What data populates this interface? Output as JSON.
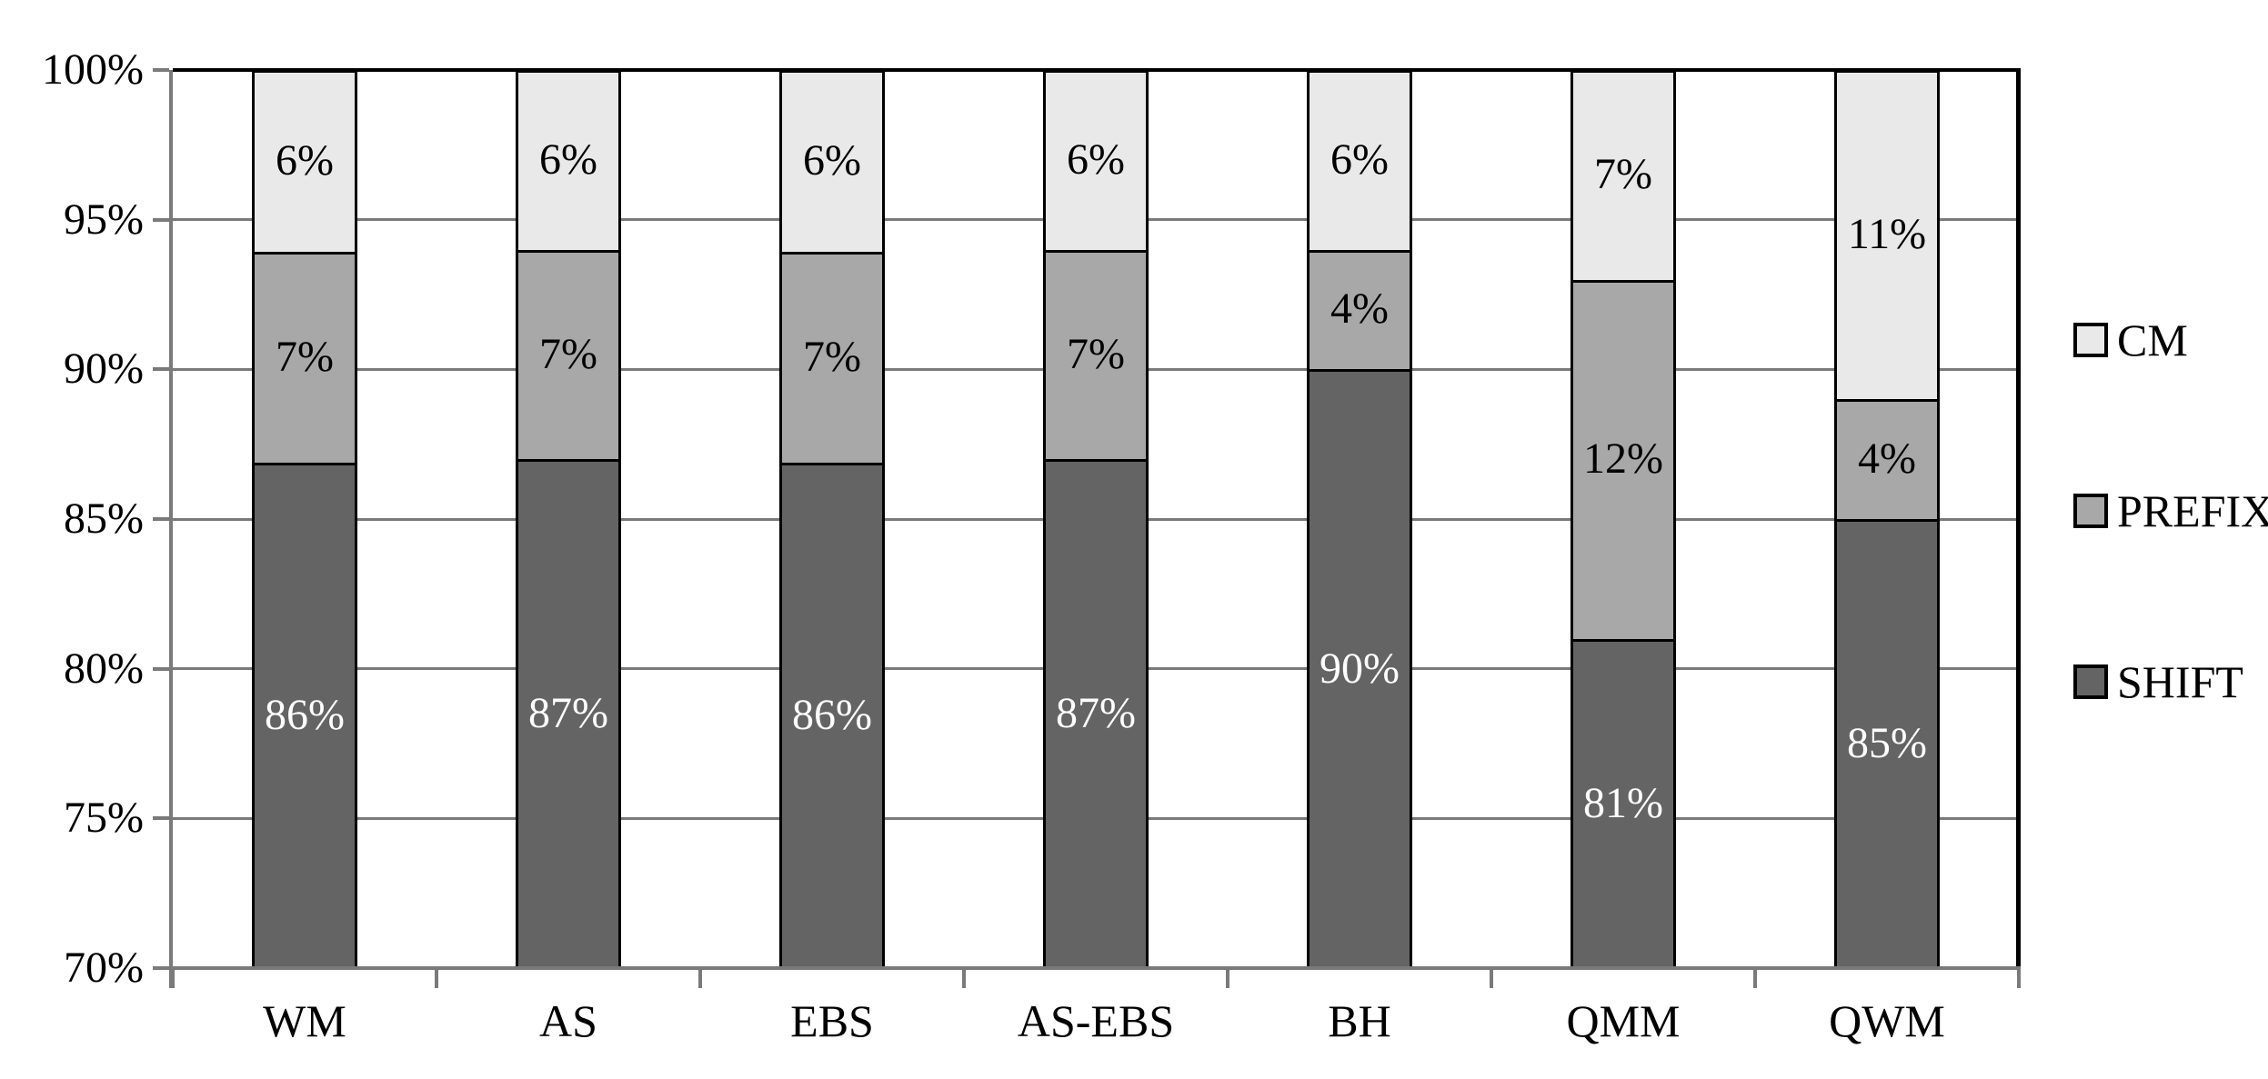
{
  "chart_data": {
    "type": "bar",
    "variant": "stacked-100-percent",
    "title": "",
    "xlabel": "",
    "ylabel": "",
    "categories": [
      "WM",
      "AS",
      "EBS",
      "AS-EBS",
      "BH",
      "QMM",
      "QWM"
    ],
    "series": [
      {
        "name": "SHIFT",
        "values": [
          86,
          87,
          86,
          87,
          90,
          81,
          85
        ],
        "color": "#646464",
        "label_color": "#ffffff"
      },
      {
        "name": "PREFIX",
        "values": [
          7,
          7,
          7,
          7,
          4,
          12,
          4
        ],
        "color": "#a8a8a8",
        "label_color": "#000000"
      },
      {
        "name": "CM",
        "values": [
          6,
          6,
          6,
          6,
          6,
          7,
          11
        ],
        "color": "#e9e9e9",
        "label_color": "#000000"
      }
    ],
    "value_suffix": "%",
    "y_axis": {
      "min": 70,
      "max": 100,
      "step": 5,
      "suffix": "%",
      "tick_labels": [
        "70%",
        "75%",
        "80%",
        "85%",
        "90%",
        "95%",
        "100%"
      ]
    },
    "grid": true,
    "legend": {
      "position": "right",
      "items": [
        "CM",
        "PREFIX",
        "SHIFT"
      ]
    },
    "colors": {
      "gridline": "#7a7a7a",
      "axis": "#7a7a7a",
      "frame": "#000000",
      "background": "#ffffff"
    }
  }
}
